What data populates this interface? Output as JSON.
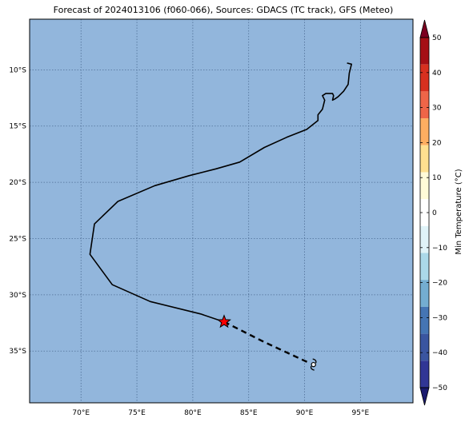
{
  "title": "Forecast of 2024013106 (f060-066), Sources: GDACS (TC track), GFS (Meteo)",
  "colors": {
    "ocean": "#92b6dc",
    "grid": "#4f6f96",
    "track": "#000000",
    "marker_fill": "#ff0000"
  },
  "map": {
    "lon_range": [
      65.4,
      99.7
    ],
    "lat_range": [
      -39.6,
      -5.5
    ],
    "lon_ticks": [
      70,
      75,
      80,
      85,
      90,
      95
    ],
    "lon_tick_labels": [
      "70°E",
      "75°E",
      "80°E",
      "85°E",
      "90°E",
      "95°E"
    ],
    "lat_ticks": [
      -10,
      -15,
      -20,
      -25,
      -30,
      -35
    ],
    "lat_tick_labels": [
      "10°S",
      "15°S",
      "20°S",
      "25°S",
      "30°S",
      "35°S"
    ],
    "past_track": [
      [
        93.8,
        -9.4
      ],
      [
        94.2,
        -9.5
      ],
      [
        94.0,
        -10.3
      ],
      [
        93.9,
        -11.3
      ],
      [
        93.5,
        -11.9
      ],
      [
        93.0,
        -12.4
      ],
      [
        92.7,
        -12.6
      ],
      [
        92.5,
        -12.7
      ],
      [
        92.6,
        -12.3
      ],
      [
        92.5,
        -12.1
      ],
      [
        91.9,
        -12.1
      ],
      [
        91.6,
        -12.3
      ],
      [
        91.8,
        -12.7
      ],
      [
        91.6,
        -13.5
      ],
      [
        91.2,
        -14.0
      ],
      [
        91.2,
        -14.5
      ],
      [
        90.2,
        -15.3
      ],
      [
        88.4,
        -16.0
      ],
      [
        86.4,
        -16.9
      ],
      [
        84.2,
        -18.2
      ],
      [
        82.1,
        -18.8
      ],
      [
        79.7,
        -19.4
      ],
      [
        76.6,
        -20.3
      ],
      [
        73.3,
        -21.7
      ],
      [
        71.2,
        -23.7
      ],
      [
        70.8,
        -26.4
      ],
      [
        72.8,
        -29.1
      ],
      [
        76.2,
        -30.6
      ],
      [
        80.7,
        -31.7
      ],
      [
        82.8,
        -32.4
      ]
    ],
    "current_position": [
      82.8,
      -32.4
    ],
    "forecast_track": [
      [
        82.8,
        -32.4
      ],
      [
        86.4,
        -34.2
      ],
      [
        90.3,
        -36.0
      ]
    ],
    "forecast_position": [
      90.8,
      -36.2
    ]
  },
  "colorbar": {
    "label": "Min Temperature (°C)",
    "ticks": [
      "50",
      "40",
      "30",
      "20",
      "10",
      "0",
      "−10",
      "−20",
      "−30",
      "−40",
      "−50"
    ],
    "colors": [
      "#7b0020",
      "#a50f15",
      "#d7301f",
      "#ef6548",
      "#fdae61",
      "#fee090",
      "#fffbd8",
      "#ffffff",
      "#e0f3f8",
      "#abd9e9",
      "#74add1",
      "#4575b4",
      "#3a55a0",
      "#313695",
      "#1a1a6e"
    ],
    "levels": [
      50,
      40,
      30,
      20,
      10,
      0,
      -10,
      -20,
      -30,
      -40,
      -50
    ]
  }
}
